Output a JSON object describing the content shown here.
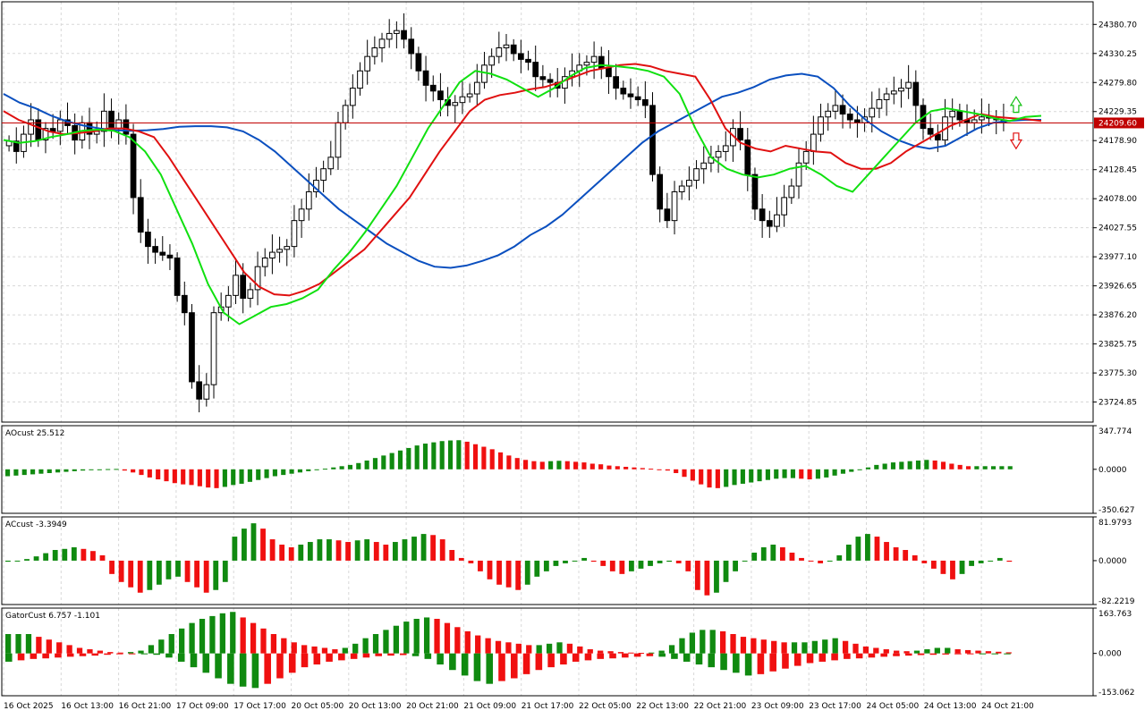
{
  "chart_data": {
    "type": "candlestick",
    "current_price": 24209.6,
    "price_label": "24209.60",
    "price_axis": {
      "ylim": [
        23690,
        24420
      ],
      "ticks": [
        "24380.70",
        "24330.25",
        "24279.80",
        "24229.35",
        "24178.90",
        "24128.45",
        "24078.00",
        "24027.55",
        "23977.10",
        "23926.65",
        "23876.20",
        "23825.75",
        "23775.30",
        "23724.85"
      ]
    },
    "time_labels": [
      "16 Oct 2025",
      "16 Oct 13:00",
      "16 Oct 21:00",
      "17 Oct 09:00",
      "17 Oct 17:00",
      "20 Oct 05:00",
      "20 Oct 13:00",
      "20 Oct 21:00",
      "21 Oct 09:00",
      "21 Oct 17:00",
      "22 Oct 05:00",
      "22 Oct 13:00",
      "22 Oct 21:00",
      "23 Oct 09:00",
      "23 Oct 17:00",
      "24 Oct 05:00",
      "24 Oct 13:00",
      "24 Oct 21:00"
    ],
    "close": [
      24178,
      24160,
      24190,
      24215,
      24180,
      24200,
      24195,
      24215,
      24205,
      24180,
      24210,
      24190,
      24195,
      24230,
      24200,
      24215,
      24190,
      24080,
      24020,
      23995,
      23985,
      23980,
      23975,
      23910,
      23880,
      23760,
      23730,
      23755,
      23880,
      23890,
      23910,
      23945,
      23905,
      23920,
      23960,
      23975,
      23985,
      23990,
      23995,
      24040,
      24060,
      24090,
      24110,
      24130,
      24150,
      24210,
      24240,
      24270,
      24300,
      24325,
      24340,
      24355,
      24365,
      24370,
      24355,
      24330,
      24300,
      24275,
      24265,
      24250,
      24240,
      24245,
      24255,
      24260,
      24280,
      24310,
      24325,
      24340,
      24345,
      24330,
      24320,
      24315,
      24290,
      24285,
      24280,
      24270,
      24290,
      24300,
      24310,
      24315,
      24325,
      24305,
      24290,
      24270,
      24260,
      24255,
      24250,
      24240,
      24120,
      24060,
      24040,
      24090,
      24100,
      24110,
      24130,
      24140,
      24150,
      24160,
      24170,
      24200,
      24180,
      24120,
      24060,
      24040,
      24030,
      24050,
      24080,
      24100,
      24140,
      24160,
      24190,
      24220,
      24230,
      24240,
      24225,
      24215,
      24210,
      24220,
      24235,
      24250,
      24260,
      24265,
      24270,
      24280,
      24240,
      24200,
      24190,
      24180,
      24220,
      24230,
      24215,
      24210,
      24215,
      24220,
      24218,
      24215,
      24210
    ],
    "alligator": {
      "jaw_color": "#0a4fbf",
      "teeth_color": "#e01010",
      "lips_color": "#10e010",
      "jaw": [
        24260,
        24245,
        24235,
        24222,
        24212,
        24205,
        24200,
        24197,
        24196,
        24197,
        24199,
        24203,
        24204,
        24204,
        24202,
        24195,
        24180,
        24160,
        24135,
        24110,
        24085,
        24060,
        24040,
        24020,
        24000,
        23985,
        23970,
        23960,
        23958,
        23962,
        23970,
        23980,
        23995,
        24015,
        24030,
        24050,
        24075,
        24100,
        24125,
        24150,
        24175,
        24195,
        24210,
        24225,
        24240,
        24255,
        24262,
        24272,
        24285,
        24292,
        24295,
        24290,
        24270,
        24240,
        24215,
        24195,
        24180,
        24170,
        24165,
        24170,
        24185,
        24200,
        24210,
        24213,
        24215,
        24215
      ],
      "teeth": [
        24230,
        24215,
        24205,
        24195,
        24190,
        24192,
        24195,
        24200,
        24200,
        24195,
        24185,
        24150,
        24110,
        24070,
        24030,
        23990,
        23950,
        23925,
        23912,
        23910,
        23918,
        23930,
        23950,
        23970,
        23990,
        24020,
        24050,
        24080,
        24120,
        24160,
        24195,
        24230,
        24250,
        24258,
        24262,
        24268,
        24272,
        24280,
        24290,
        24300,
        24305,
        24310,
        24312,
        24308,
        24300,
        24295,
        24290,
        24250,
        24200,
        24175,
        24165,
        24160,
        24170,
        24165,
        24160,
        24158,
        24140,
        24130,
        24130,
        24140,
        24160,
        24175,
        24190,
        24205,
        24215,
        24225,
        24220,
        24218,
        24216,
        24213
      ],
      "lips": [
        24180,
        24175,
        24178,
        24185,
        24190,
        24196,
        24198,
        24196,
        24185,
        24160,
        24120,
        24060,
        24000,
        23930,
        23880,
        23860,
        23875,
        23890,
        23895,
        23905,
        23920,
        23955,
        23985,
        24020,
        24060,
        24100,
        24150,
        24200,
        24240,
        24280,
        24300,
        24295,
        24285,
        24270,
        24255,
        24270,
        24290,
        24305,
        24310,
        24308,
        24305,
        24300,
        24290,
        24260,
        24200,
        24150,
        24130,
        24120,
        24115,
        24120,
        24130,
        24135,
        24120,
        24100,
        24090,
        24120,
        24150,
        24180,
        24210,
        24230,
        24235,
        24230,
        24225,
        24218,
        24213,
        24220,
        24222
      ]
    },
    "oscillators": [
      {
        "label": "AOcust 25.512",
        "axis_top": "347.774",
        "axis_mid": "0.0000",
        "axis_bottom": "-350.627",
        "ylim": [
          -350.627,
          347.774
        ],
        "values": [
          -55,
          -50,
          -45,
          -40,
          -35,
          -30,
          -25,
          -20,
          -15,
          -10,
          -5,
          0,
          2,
          3,
          -10,
          -25,
          -45,
          -65,
          -80,
          -95,
          -110,
          -120,
          -125,
          -135,
          -145,
          -150,
          -140,
          -125,
          -115,
          -100,
          -85,
          -70,
          -55,
          -45,
          -35,
          -25,
          -15,
          -5,
          5,
          15,
          25,
          35,
          50,
          70,
          90,
          110,
          130,
          150,
          170,
          190,
          205,
          215,
          225,
          230,
          232,
          220,
          200,
          180,
          160,
          135,
          110,
          90,
          75,
          65,
          60,
          65,
          68,
          65,
          60,
          55,
          45,
          40,
          30,
          25,
          20,
          15,
          10,
          5,
          0,
          -10,
          -30,
          -60,
          -90,
          -120,
          -145,
          -150,
          -140,
          -125,
          -115,
          -105,
          -95,
          -85,
          -75,
          -70,
          -70,
          -75,
          -80,
          -75,
          -65,
          -50,
          -35,
          -20,
          0,
          15,
          35,
          45,
          55,
          60,
          65,
          70,
          75,
          70,
          60,
          45,
          35,
          25,
          25,
          25,
          25,
          25,
          25
        ]
      },
      {
        "label": "ACcust -3.3949",
        "axis_top": "81.9793",
        "axis_mid": "0.0000",
        "axis_bottom": "-82.2219",
        "ylim": [
          -82.2219,
          81.9793
        ],
        "values": [
          -2,
          0,
          3,
          8,
          14,
          20,
          22,
          25,
          22,
          18,
          10,
          -25,
          -40,
          -50,
          -60,
          -55,
          -45,
          -35,
          -30,
          -40,
          -50,
          -60,
          -55,
          -40,
          45,
          60,
          70,
          60,
          40,
          30,
          25,
          30,
          35,
          40,
          40,
          38,
          35,
          38,
          40,
          35,
          30,
          35,
          40,
          45,
          50,
          48,
          40,
          20,
          5,
          -5,
          -20,
          -35,
          -45,
          -50,
          -55,
          -45,
          -30,
          -20,
          -10,
          -5,
          0,
          5,
          -2,
          -10,
          -20,
          -25,
          -20,
          -15,
          -10,
          -5,
          -2,
          -5,
          -20,
          -55,
          -65,
          -60,
          -40,
          -20,
          0,
          15,
          25,
          30,
          25,
          15,
          5,
          0,
          -5,
          0,
          10,
          30,
          45,
          50,
          45,
          35,
          25,
          20,
          10,
          -5,
          -15,
          -25,
          -35,
          -25,
          -10,
          -5,
          0,
          5,
          -2
        ]
      },
      {
        "label": "GatorCust 6.757 -1.101",
        "axis_top": "163.763",
        "axis_mid": "0.000",
        "axis_bottom": "-153.062",
        "ylim": [
          -153.062,
          163.763
        ],
        "up": [
          70,
          70,
          70,
          60,
          50,
          40,
          30,
          20,
          15,
          10,
          5,
          3,
          5,
          10,
          30,
          50,
          70,
          90,
          110,
          125,
          135,
          145,
          150,
          130,
          110,
          90,
          70,
          55,
          40,
          30,
          25,
          20,
          15,
          20,
          35,
          55,
          70,
          85,
          100,
          115,
          125,
          130,
          125,
          110,
          95,
          80,
          65,
          55,
          45,
          40,
          35,
          30,
          30,
          35,
          40,
          35,
          25,
          15,
          10,
          8,
          5,
          3,
          2,
          3,
          10,
          30,
          55,
          75,
          85,
          85,
          80,
          70,
          60,
          55,
          50,
          45,
          40,
          40,
          40,
          45,
          50,
          55,
          45,
          35,
          25,
          20,
          15,
          10,
          8,
          10,
          15,
          20,
          20,
          15,
          12,
          10,
          8,
          6,
          4
        ],
        "down": [
          -30,
          -25,
          -20,
          -18,
          -15,
          -12,
          -10,
          -8,
          -5,
          -3,
          -2,
          -2,
          -5,
          -15,
          -30,
          -50,
          -70,
          -90,
          -110,
          -120,
          -125,
          -110,
          -90,
          -70,
          -50,
          -40,
          -30,
          -25,
          -20,
          -15,
          -10,
          -8,
          -6,
          -10,
          -20,
          -40,
          -60,
          -80,
          -100,
          -110,
          -100,
          -90,
          -75,
          -60,
          -50,
          -40,
          -30,
          -25,
          -20,
          -18,
          -15,
          -12,
          -10,
          -12,
          -20,
          -30,
          -40,
          -50,
          -60,
          -70,
          -80,
          -75,
          -65,
          -55,
          -45,
          -35,
          -30,
          -25,
          -20,
          -18,
          -15,
          -12,
          -10,
          -8,
          -6,
          -5,
          -4,
          -3,
          -2,
          -2,
          -2,
          -2
        ]
      }
    ]
  }
}
